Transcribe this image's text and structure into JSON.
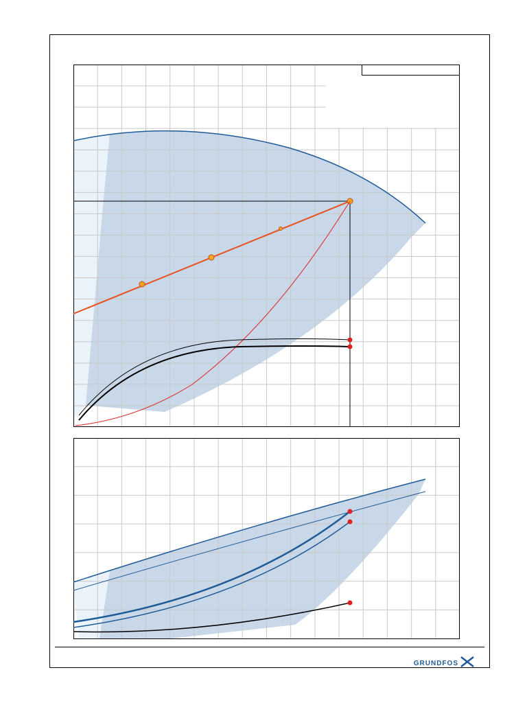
{
  "logo": {
    "text": "GRUNDFOS"
  }
}
